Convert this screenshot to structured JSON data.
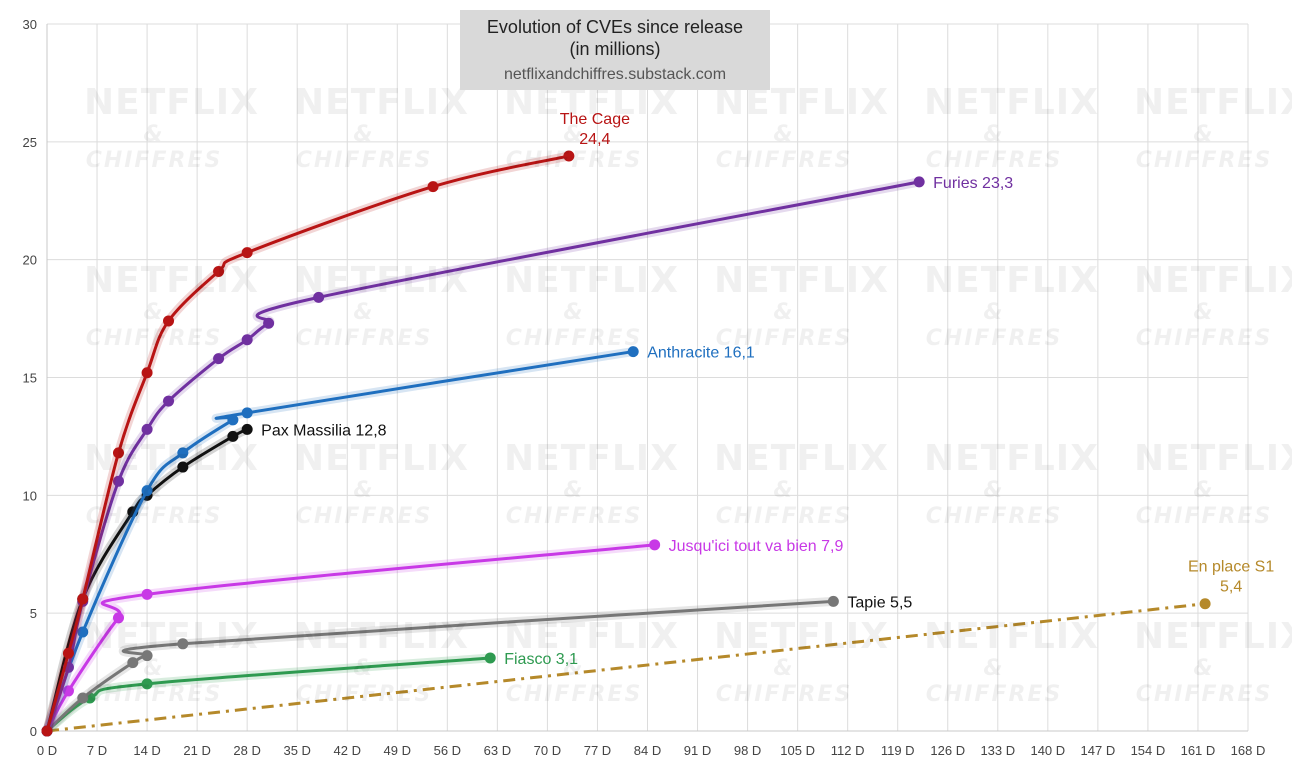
{
  "chart_data": {
    "type": "line",
    "title": "Evolution of CVEs since release",
    "subtitle": "(in millions)",
    "source": "netflixandchiffres.substack.com",
    "watermark": {
      "line1": "NETFLIX",
      "line2": "& CHIFFRES"
    },
    "xlim": [
      0,
      168
    ],
    "ylim": [
      0,
      30
    ],
    "x_ticks": [
      0,
      7,
      14,
      21,
      28,
      35,
      42,
      49,
      56,
      63,
      70,
      77,
      84,
      91,
      98,
      105,
      112,
      119,
      126,
      133,
      140,
      147,
      154,
      161,
      168
    ],
    "x_tick_labels": [
      "0 D",
      "7 D",
      "14 D",
      "21 D",
      "28 D",
      "35 D",
      "42 D",
      "49 D",
      "56 D",
      "63 D",
      "70 D",
      "77 D",
      "84 D",
      "91 D",
      "98 D",
      "105 D",
      "112 D",
      "119 D",
      "126 D",
      "133 D",
      "140 D",
      "147 D",
      "154 D",
      "161 D",
      "168 D"
    ],
    "y_ticks": [
      0,
      5,
      10,
      15,
      20,
      25,
      30
    ],
    "y_tick_labels": [
      "0",
      "5",
      "10",
      "15",
      "20",
      "25",
      "30"
    ],
    "grid": true,
    "series": [
      {
        "color": "#b81414",
        "label_lines": [
          "The Cage",
          "24,4"
        ],
        "label_pos": "above",
        "x": [
          0,
          3,
          5,
          10,
          14,
          17,
          24,
          28,
          54,
          73
        ],
        "y": [
          0,
          3.3,
          5.6,
          11.8,
          15.2,
          17.4,
          19.5,
          20.3,
          23.1,
          24.4
        ]
      },
      {
        "color": "#7030a0",
        "label_lines": [
          "Furies 23,3"
        ],
        "label_pos": "right",
        "x": [
          0,
          3,
          5,
          10,
          14,
          17,
          24,
          28,
          31,
          38,
          122
        ],
        "y": [
          0,
          2.7,
          5.5,
          10.6,
          12.8,
          14,
          15.8,
          16.6,
          17.3,
          18.4,
          23.3
        ]
      },
      {
        "color": "#1f6fbf",
        "label_lines": [
          "Anthracite 16,1"
        ],
        "label_pos": "right",
        "x": [
          0,
          5,
          14,
          19,
          26,
          28,
          82
        ],
        "y": [
          0,
          4.2,
          10.2,
          11.8,
          13.2,
          13.5,
          16.1
        ]
      },
      {
        "color": "#111111",
        "label_lines": [
          "Pax Massilia 12,8"
        ],
        "label_pos": "right",
        "x": [
          0,
          5,
          12,
          14,
          19,
          26,
          28
        ],
        "y": [
          0,
          5.6,
          9.3,
          10,
          11.2,
          12.5,
          12.8
        ]
      },
      {
        "color": "#c839e6",
        "label_lines": [
          "Jusqu'ici tout va bien 7,9"
        ],
        "label_pos": "right",
        "x": [
          0,
          3,
          10,
          14,
          85
        ],
        "y": [
          0,
          1.7,
          4.8,
          5.8,
          7.9
        ]
      },
      {
        "color": "#777777",
        "label_lines": [
          "Tapie 5,5"
        ],
        "label_pos": "right",
        "x": [
          0,
          5,
          12,
          14,
          19,
          110
        ],
        "y": [
          0,
          1.4,
          2.9,
          3.2,
          3.7,
          5.5
        ]
      },
      {
        "color": "#2e9a50",
        "label_lines": [
          "Fiasco 3,1"
        ],
        "label_pos": "right",
        "x": [
          0,
          6,
          14,
          62
        ],
        "y": [
          0,
          1.4,
          2,
          3.1
        ]
      },
      {
        "color": "#b5892a",
        "label_lines": [
          "En place S1",
          "5,4"
        ],
        "label_pos": "above",
        "dashed": true,
        "x": [
          0,
          162
        ],
        "y": [
          0,
          5.4
        ]
      }
    ]
  }
}
